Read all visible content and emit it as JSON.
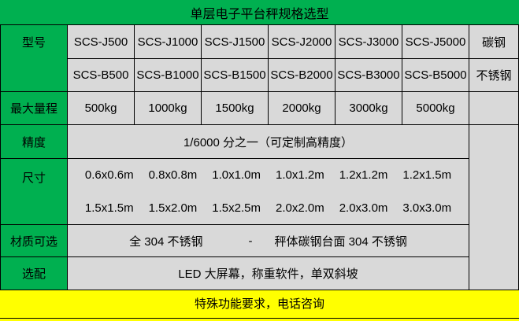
{
  "title": "单层电子平台秤规格选型",
  "footer": "特殊功能要求，电话咨询",
  "colors": {
    "header_green": "#00B050",
    "cell_gray": "#D9D9D9",
    "footer_yellow": "#FFFF00",
    "border": "#000000",
    "text": "#000000"
  },
  "table": {
    "row_labels": {
      "model": "型号",
      "capacity": "最大量程",
      "precision": "精度",
      "size": "尺寸",
      "material": "材质可选",
      "optional": "选配"
    },
    "models_j": [
      "SCS-J500",
      "SCS-J1000",
      "SCS-J1500",
      "SCS-J2000",
      "SCS-J3000",
      "SCS-J5000"
    ],
    "models_j_material": "碳钢",
    "models_b": [
      "SCS-B500",
      "SCS-B1000",
      "SCS-B1500",
      "SCS-B2000",
      "SCS-B3000",
      "SCS-B5000"
    ],
    "models_b_material": "不锈钢",
    "capacities": [
      "500kg",
      "1000kg",
      "1500kg",
      "2000kg",
      "3000kg",
      "5000kg"
    ],
    "precision_value": "1/6000 分之一（可定制高精度）",
    "sizes_line1": [
      "0.6x0.6m",
      "0.8x0.8m",
      "1.0x1.0m",
      "1.0x1.2m",
      "1.2x1.2m",
      "1.2x1.5m"
    ],
    "sizes_line2": [
      "1.5x1.5m",
      "1.5x2.0m",
      "1.5x2.5m",
      "2.0x2.0m",
      "2.0x3.0m",
      "3.0x3.0m"
    ],
    "material_parts": [
      "全 304 不锈钢",
      "-",
      "秤体碳钢台面 304 不锈钢"
    ],
    "optional_value": "LED 大屏幕，称重软件，单双斜坡"
  }
}
